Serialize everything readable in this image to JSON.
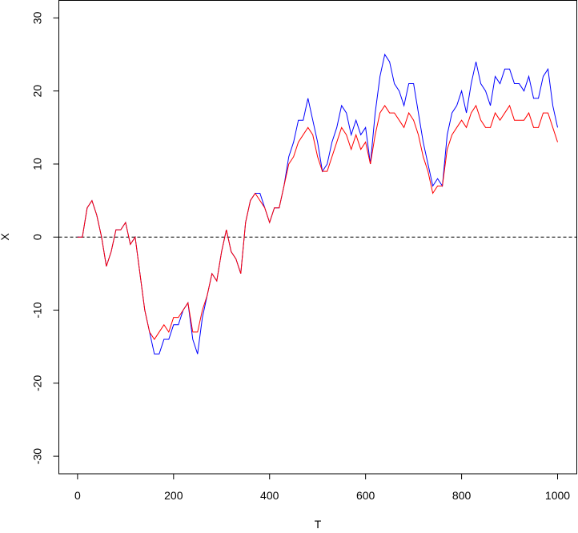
{
  "chart_data": {
    "type": "line",
    "x_label": "T",
    "y_label": "X",
    "x": [
      0,
      10,
      20,
      30,
      40,
      50,
      60,
      70,
      80,
      90,
      100,
      110,
      120,
      130,
      140,
      150,
      160,
      170,
      180,
      190,
      200,
      210,
      220,
      230,
      240,
      250,
      260,
      270,
      280,
      290,
      300,
      310,
      320,
      330,
      340,
      350,
      360,
      370,
      380,
      390,
      400,
      410,
      420,
      430,
      440,
      450,
      460,
      470,
      480,
      490,
      500,
      510,
      520,
      530,
      540,
      550,
      560,
      570,
      580,
      590,
      600,
      610,
      620,
      630,
      640,
      650,
      660,
      670,
      680,
      690,
      700,
      710,
      720,
      730,
      740,
      750,
      760,
      770,
      780,
      790,
      800,
      810,
      820,
      830,
      840,
      850,
      860,
      870,
      880,
      890,
      900,
      910,
      920,
      930,
      940,
      950,
      960,
      970,
      980,
      990,
      1000
    ],
    "series": [
      {
        "name": "blue",
        "color": "#0000ff",
        "values": [
          0,
          0,
          4,
          5,
          3,
          0,
          -4,
          -2,
          1,
          1,
          2,
          -1,
          0,
          -5,
          -10,
          -13,
          -16,
          -16,
          -14,
          -14,
          -12,
          -12,
          -10,
          -9,
          -14,
          -16,
          -11,
          -8,
          -5,
          -6,
          -2,
          1,
          -2,
          -3,
          -5,
          2,
          5,
          6,
          6,
          4,
          2,
          4,
          4,
          7,
          11,
          13,
          16,
          16,
          19,
          16,
          13,
          9,
          10,
          13,
          15,
          18,
          17,
          14,
          16,
          14,
          15,
          10,
          17,
          22,
          25,
          24,
          21,
          20,
          18,
          21,
          21,
          17,
          13,
          10,
          7,
          8,
          7,
          14,
          17,
          18,
          20,
          17,
          21,
          24,
          21,
          20,
          18,
          22,
          21,
          23,
          23,
          21,
          21,
          20,
          22,
          19,
          19,
          22,
          23,
          18,
          15
        ]
      },
      {
        "name": "red",
        "color": "#ff0000",
        "values": [
          0,
          0,
          4,
          5,
          3,
          0,
          -4,
          -2,
          1,
          1,
          2,
          -1,
          0,
          -5,
          -10,
          -13,
          -14,
          -13,
          -12,
          -13,
          -11,
          -11,
          -10,
          -9,
          -13,
          -13,
          -10,
          -8,
          -5,
          -6,
          -2,
          1,
          -2,
          -3,
          -5,
          2,
          5,
          6,
          5,
          4,
          2,
          4,
          4,
          7,
          10,
          11,
          13,
          14,
          15,
          14,
          11,
          9,
          9,
          11,
          13,
          15,
          14,
          12,
          14,
          12,
          13,
          10,
          14,
          17,
          18,
          17,
          17,
          16,
          15,
          17,
          16,
          14,
          11,
          9,
          6,
          7,
          7,
          12,
          14,
          15,
          16,
          15,
          17,
          18,
          16,
          15,
          15,
          17,
          16,
          17,
          18,
          16,
          16,
          16,
          17,
          15,
          15,
          17,
          17,
          15,
          13
        ]
      }
    ],
    "xlim": [
      -39,
      1040
    ],
    "ylim": [
      -32.4,
      32.4
    ],
    "xticks": [
      0,
      200,
      400,
      600,
      800,
      1000
    ],
    "yticks": [
      -30,
      -20,
      -10,
      0,
      10,
      20,
      30
    ],
    "hline": 0
  }
}
